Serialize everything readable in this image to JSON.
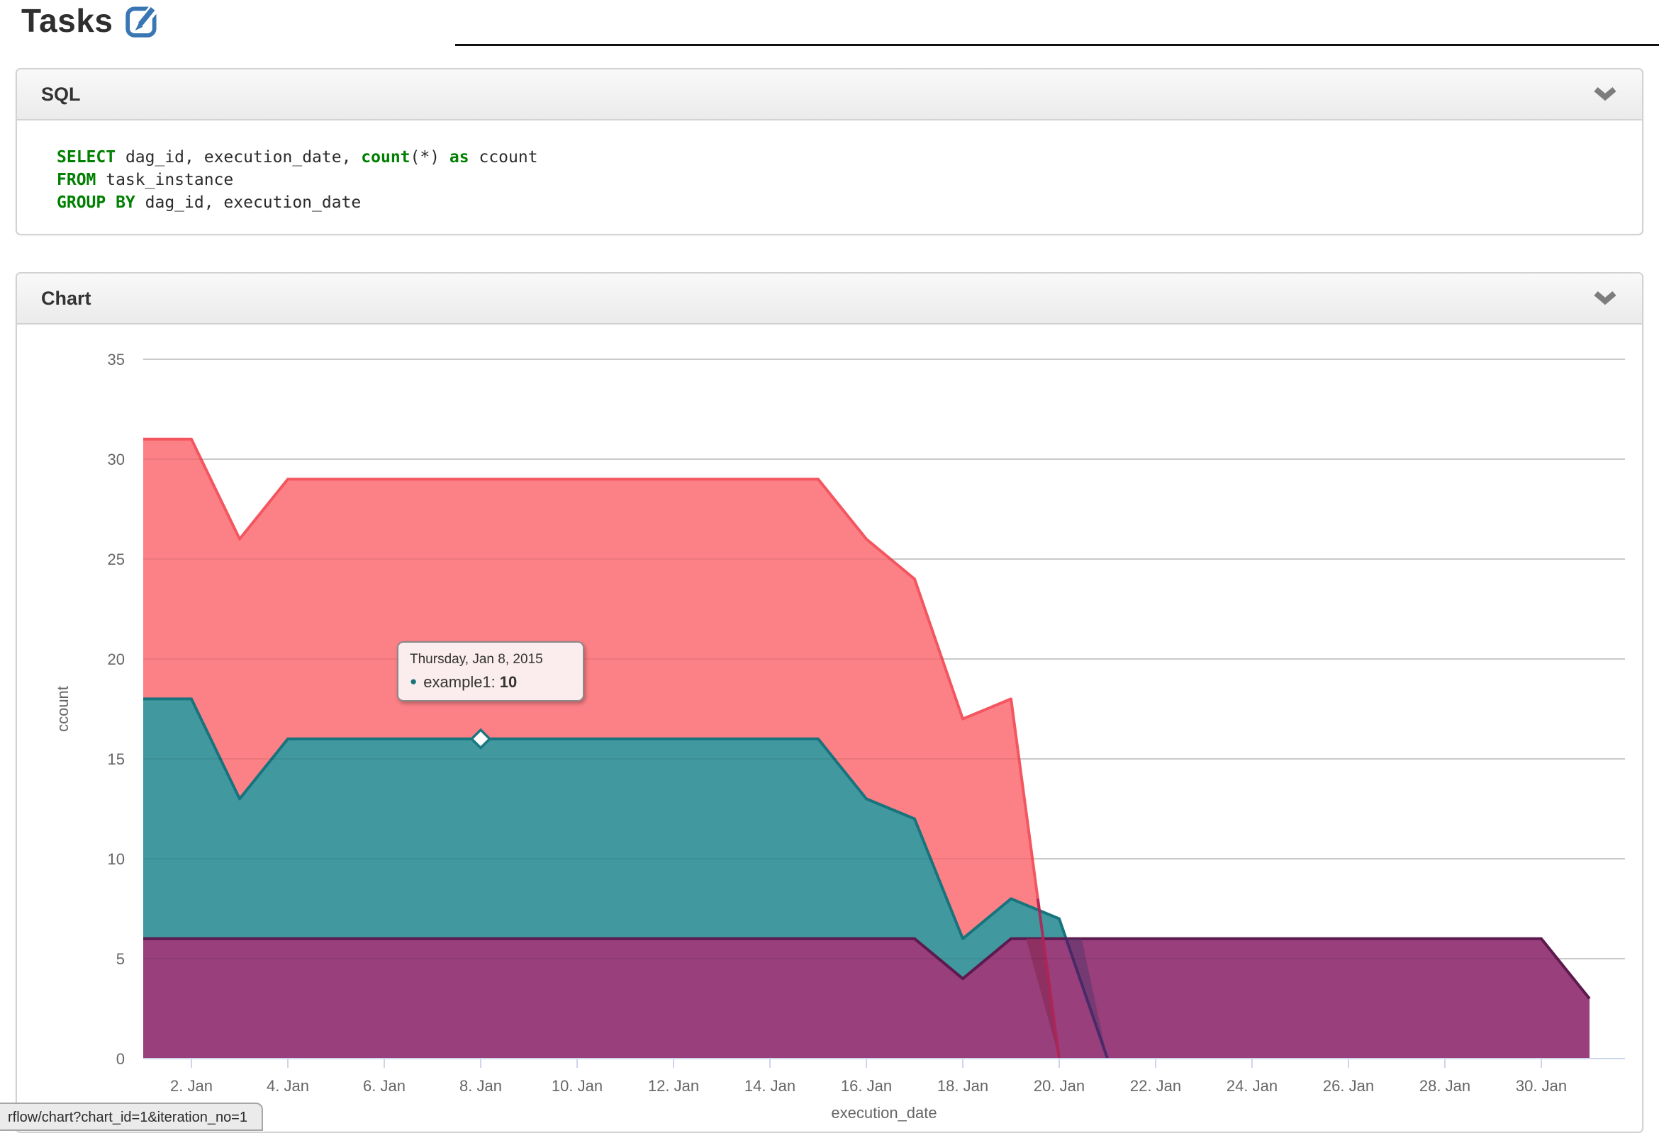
{
  "page": {
    "title": "Tasks"
  },
  "panels": {
    "sql": {
      "title": "SQL",
      "code_lines": [
        [
          {
            "t": "SELECT",
            "k": true
          },
          {
            "t": " dag_id, execution_date, "
          },
          {
            "t": "count",
            "k": true
          },
          {
            "t": "(*) "
          },
          {
            "t": "as",
            "k": true
          },
          {
            "t": " ccount"
          }
        ],
        [
          {
            "t": "FROM",
            "k": true
          },
          {
            "t": " task_instance"
          }
        ],
        [
          {
            "t": "GROUP BY",
            "k": true
          },
          {
            "t": " dag_id, execution_date"
          }
        ]
      ]
    },
    "chart": {
      "title": "Chart"
    }
  },
  "chart_data": {
    "type": "area",
    "xlabel": "execution_date",
    "ylabel": "ccount",
    "x_unit": "day of January 2015",
    "ylim": [
      0,
      35
    ],
    "y_ticks": [
      0,
      5,
      10,
      15,
      20,
      25,
      30,
      35
    ],
    "x_ticks": [
      2,
      4,
      6,
      8,
      10,
      12,
      14,
      16,
      18,
      20,
      22,
      24,
      26,
      28,
      30
    ],
    "x_tick_labels": [
      "2. Jan",
      "4. Jan",
      "6. Jan",
      "8. Jan",
      "10. Jan",
      "12. Jan",
      "14. Jan",
      "16. Jan",
      "18. Jan",
      "20. Jan",
      "22. Jan",
      "24. Jan",
      "26. Jan",
      "28. Jan",
      "30. Jan"
    ],
    "grid": true,
    "legend": false,
    "series": [
      {
        "name": null,
        "color_role": "red",
        "fill": "#FC8186",
        "stroke": "#F4565F",
        "x": [
          1,
          2,
          3,
          4,
          5,
          6,
          7,
          8,
          9,
          10,
          11,
          12,
          13,
          14,
          15,
          16,
          17,
          18,
          19,
          20
        ],
        "values": [
          31,
          31,
          26,
          29,
          29,
          29,
          29,
          29,
          29,
          29,
          29,
          29,
          29,
          29,
          29,
          26,
          24,
          17,
          18,
          0
        ]
      },
      {
        "name": "example1",
        "color_role": "teal",
        "fill": "#41999F",
        "stroke": "#17747D",
        "x": [
          1,
          2,
          3,
          4,
          5,
          6,
          7,
          8,
          9,
          10,
          11,
          12,
          13,
          14,
          15,
          16,
          17,
          18,
          19,
          20,
          21
        ],
        "values": [
          18,
          18,
          13,
          16,
          16,
          16,
          16,
          16,
          16,
          16,
          16,
          16,
          16,
          16,
          16,
          13,
          12,
          6,
          8,
          7,
          0
        ]
      },
      {
        "name": null,
        "color_role": "purple",
        "fill": "#993F7B",
        "stroke": "#5C1A4F",
        "x": [
          1,
          2,
          3,
          4,
          5,
          6,
          7,
          8,
          9,
          10,
          11,
          12,
          13,
          14,
          15,
          16,
          17,
          18,
          19,
          20,
          21,
          22,
          23,
          24,
          25,
          26,
          27,
          28,
          29,
          30,
          31
        ],
        "values": [
          6,
          6,
          6,
          6,
          6,
          6,
          6,
          6,
          6,
          6,
          6,
          6,
          6,
          6,
          6,
          6,
          6,
          4,
          6,
          6,
          6,
          6,
          6,
          6,
          6,
          6,
          6,
          6,
          6,
          6,
          3
        ]
      }
    ],
    "hover_point": {
      "series": "example1",
      "day": 8,
      "marker_value": 16
    }
  },
  "tooltip": {
    "date_line": "Thursday, Jan 8, 2015",
    "series_label": "example1:",
    "value": "10",
    "bullet": "●",
    "bullet_color": "#17747D"
  },
  "status_bar": {
    "text": "rflow/chart?chart_id=1&iteration_no=1"
  },
  "colors": {
    "grid": "#D8D8D8",
    "axis": "#CCD6EB",
    "tick_text": "#666666",
    "keyword_green": "#008000",
    "icon_blue": "#3A76B3",
    "chevron_gray": "#7d7d7d",
    "overlap_red_line": "#B02455",
    "overlap_red_wedge": "#8D2F5E",
    "overlap_teal_line": "#3F2766",
    "overlap_teal_wedge": "#5A376E"
  }
}
